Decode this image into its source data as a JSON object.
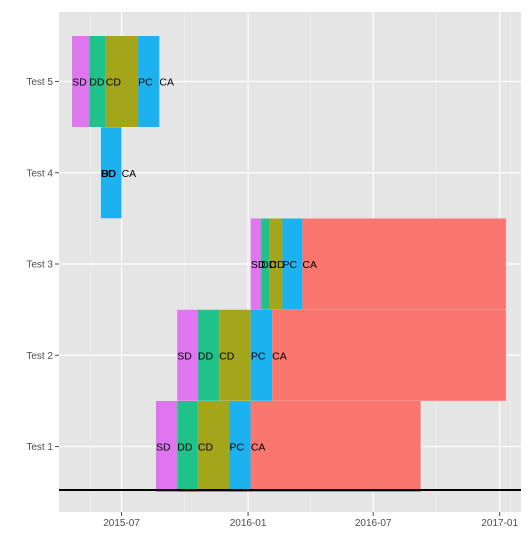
{
  "chart_data": {
    "type": "bar",
    "orientation": "horizontal-stacked-timeline",
    "title": "",
    "xlabel": "",
    "ylabel": "",
    "x_axis": {
      "kind": "date",
      "range": [
        "2015-04-01",
        "2017-02-01"
      ],
      "ticks": [
        {
          "date": "2015-07-01",
          "label": "2015-07"
        },
        {
          "date": "2016-01-01",
          "label": "2016-01"
        },
        {
          "date": "2016-07-01",
          "label": "2016-07"
        },
        {
          "date": "2017-01-01",
          "label": "2017-01"
        }
      ],
      "baseline": true
    },
    "y_axis": {
      "categories": [
        "Test 1",
        "Test 2",
        "Test 3",
        "Test 4",
        "Test 5"
      ]
    },
    "grid": true,
    "legend": "none",
    "phase_colors": {
      "SD": "#e076ef",
      "DD": "#1fc28a",
      "CD": "#a3a51b",
      "PC": "#1cb2f0",
      "CA": "#f8766d"
    },
    "series": [
      {
        "category": "Test 1",
        "segments": [
          {
            "phase": "SD",
            "label": "SD",
            "start": "2015-08-20",
            "end": "2015-09-20"
          },
          {
            "phase": "DD",
            "label": "DD",
            "start": "2015-09-20",
            "end": "2015-10-20"
          },
          {
            "phase": "CD",
            "label": "CD",
            "start": "2015-10-20",
            "end": "2015-12-05"
          },
          {
            "phase": "PC",
            "label": "PC",
            "start": "2015-12-05",
            "end": "2016-01-05"
          },
          {
            "phase": "CA",
            "label": "CA",
            "start": "2016-01-05",
            "end": "2016-09-08"
          }
        ]
      },
      {
        "category": "Test 2",
        "segments": [
          {
            "phase": "SD",
            "label": "SD",
            "start": "2015-09-20",
            "end": "2015-10-20"
          },
          {
            "phase": "DD",
            "label": "DD",
            "start": "2015-10-20",
            "end": "2015-11-20"
          },
          {
            "phase": "CD",
            "label": "CD",
            "start": "2015-11-20",
            "end": "2016-01-05"
          },
          {
            "phase": "PC",
            "label": "PC",
            "start": "2016-01-05",
            "end": "2016-02-05"
          },
          {
            "phase": "CA",
            "label": "CA",
            "start": "2016-02-05",
            "end": "2017-01-10"
          }
        ]
      },
      {
        "category": "Test 3",
        "segments": [
          {
            "phase": "SD",
            "label": "SD",
            "start": "2016-01-05",
            "end": "2016-01-20"
          },
          {
            "phase": "DD",
            "label": "DD",
            "start": "2016-01-20",
            "end": "2016-02-01"
          },
          {
            "phase": "CD",
            "label": "CD",
            "start": "2016-02-01",
            "end": "2016-02-20"
          },
          {
            "phase": "PC",
            "label": "PC",
            "start": "2016-02-20",
            "end": "2016-03-20"
          },
          {
            "phase": "CA",
            "label": "CA",
            "start": "2016-03-20",
            "end": "2017-01-10"
          }
        ]
      },
      {
        "category": "Test 4",
        "segments": [
          {
            "phase": "SD",
            "label": "SD",
            "start": "2015-06-01",
            "end": "2015-06-01"
          },
          {
            "phase": "DD",
            "label": "DD",
            "start": "2015-06-01",
            "end": "2015-06-01"
          },
          {
            "phase": "CD",
            "label": "CD",
            "start": "2015-06-01",
            "end": "2015-06-01"
          },
          {
            "phase": "PC",
            "label": "PC",
            "start": "2015-06-01",
            "end": "2015-07-01"
          },
          {
            "phase": "CA",
            "label": "CA",
            "start": "2015-07-01",
            "end": "2015-07-01"
          }
        ]
      },
      {
        "category": "Test 5",
        "segments": [
          {
            "phase": "SD",
            "label": "SD",
            "start": "2015-04-20",
            "end": "2015-05-15"
          },
          {
            "phase": "DD",
            "label": "DD",
            "start": "2015-05-15",
            "end": "2015-06-08"
          },
          {
            "phase": "CD",
            "label": "CD",
            "start": "2015-06-08",
            "end": "2015-07-25"
          },
          {
            "phase": "PC",
            "label": "PC",
            "start": "2015-07-25",
            "end": "2015-08-25"
          },
          {
            "phase": "CA",
            "label": "CA",
            "start": "2015-08-25",
            "end": "2015-08-25"
          }
        ]
      }
    ]
  }
}
